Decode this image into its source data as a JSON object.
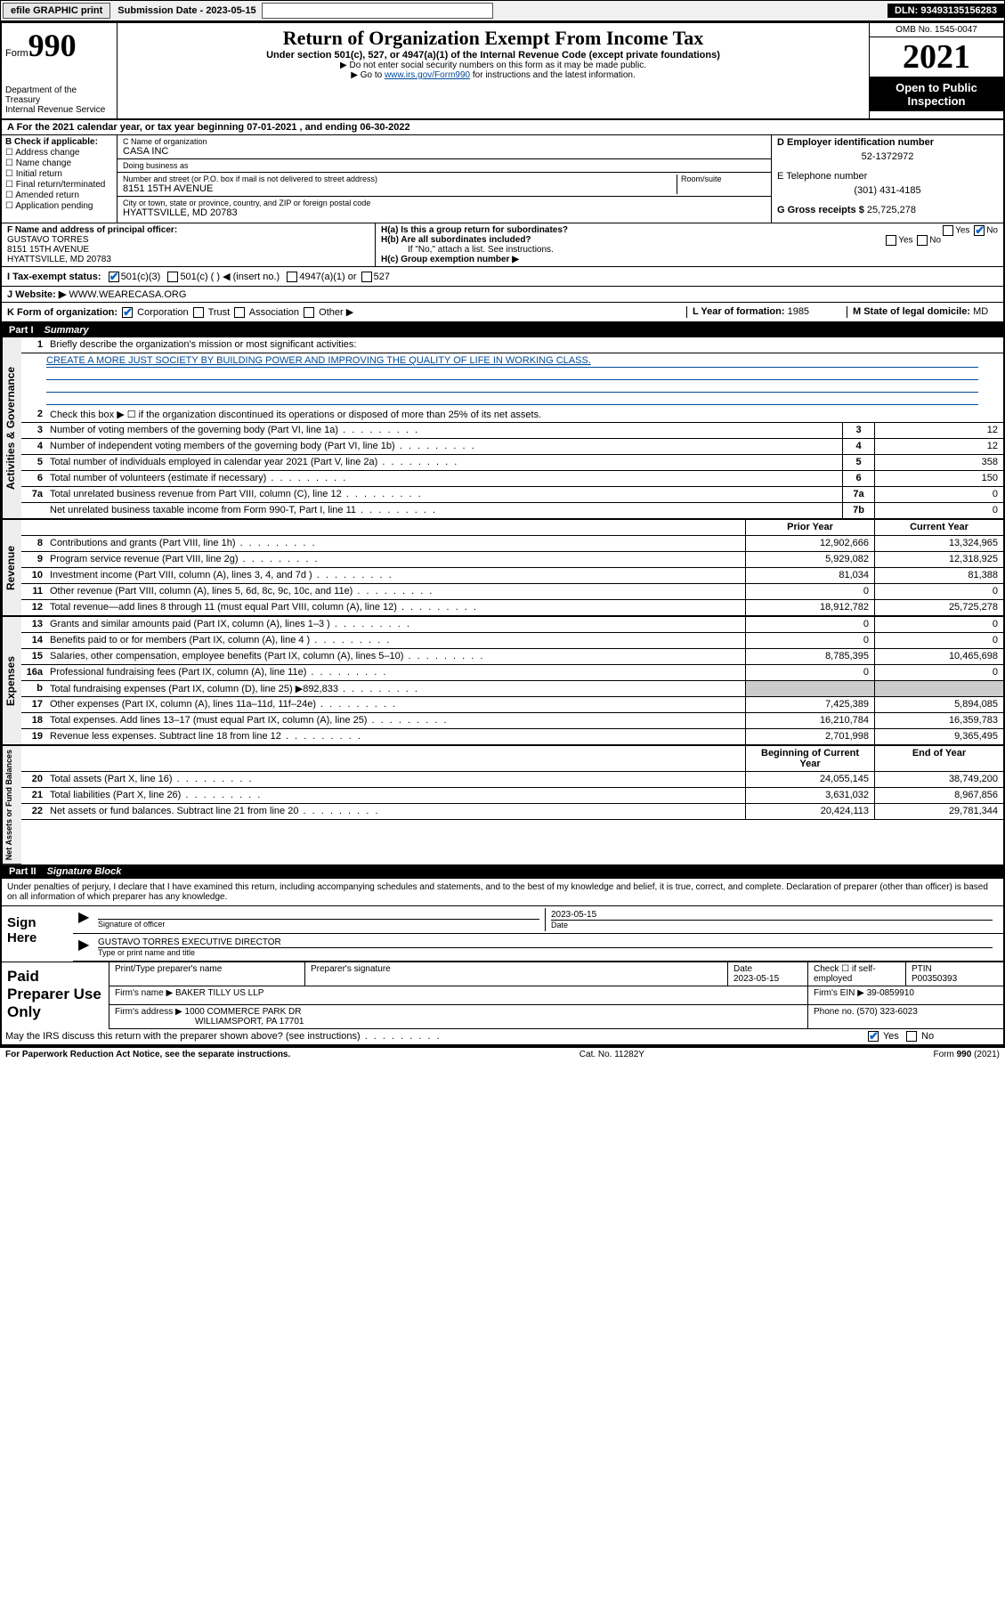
{
  "toolbar": {
    "efile": "efile GRAPHIC print",
    "sub_label": "Submission Date - 2023-05-15",
    "dln": "DLN: 93493135156283"
  },
  "header": {
    "form_word": "Form",
    "form_num": "990",
    "dept": "Department of the Treasury",
    "irs": "Internal Revenue Service",
    "title": "Return of Organization Exempt From Income Tax",
    "sub": "Under section 501(c), 527, or 4947(a)(1) of the Internal Revenue Code (except private foundations)",
    "note1": "▶ Do not enter social security numbers on this form as it may be made public.",
    "note2_pre": "▶ Go to ",
    "note2_link": "www.irs.gov/Form990",
    "note2_post": " for instructions and the latest information.",
    "omb": "OMB No. 1545-0047",
    "year": "2021",
    "opi": "Open to Public Inspection"
  },
  "rowA": "A For the 2021 calendar year, or tax year beginning 07-01-2021  , and ending 06-30-2022",
  "boxB": {
    "title": "B Check if applicable:",
    "opts": [
      "Address change",
      "Name change",
      "Initial return",
      "Final return/terminated",
      "Amended return",
      "Application pending"
    ]
  },
  "boxC": {
    "label_name": "C Name of organization",
    "name": "CASA INC",
    "dba_label": "Doing business as",
    "dba": "",
    "addr_label": "Number and street (or P.O. box if mail is not delivered to street address)",
    "room_label": "Room/suite",
    "addr": "8151 15TH AVENUE",
    "city_label": "City or town, state or province, country, and ZIP or foreign postal code",
    "city": "HYATTSVILLE, MD  20783"
  },
  "boxD": {
    "label": "D Employer identification number",
    "ein": "52-1372972",
    "tel_label": "E Telephone number",
    "tel": "(301) 431-4185",
    "gross_label": "G Gross receipts $",
    "gross": "25,725,278"
  },
  "boxF": {
    "label": "F  Name and address of principal officer:",
    "name": "GUSTAVO TORRES",
    "addr1": "8151 15TH AVENUE",
    "addr2": "HYATTSVILLE, MD  20783"
  },
  "boxH": {
    "ha": "H(a)  Is this a group return for subordinates?",
    "hb": "H(b)  Are all subordinates included?",
    "hb_note": "If \"No,\" attach a list. See instructions.",
    "hc": "H(c)  Group exemption number ▶",
    "yes": "Yes",
    "no": "No"
  },
  "rowI": {
    "label": "I   Tax-exempt status:",
    "o1": "501(c)(3)",
    "o2": "501(c) (  ) ◀ (insert no.)",
    "o3": "4947(a)(1) or",
    "o4": "527"
  },
  "rowJ": {
    "label": "J   Website: ▶",
    "val": "WWW.WEARECASA.ORG"
  },
  "rowK": {
    "label": "K Form of organization:",
    "o1": "Corporation",
    "o2": "Trust",
    "o3": "Association",
    "o4": "Other ▶",
    "l_label": "L Year of formation:",
    "l_val": "1985",
    "m_label": "M State of legal domicile:",
    "m_val": "MD"
  },
  "part1": {
    "num": "Part I",
    "title": "Summary"
  },
  "summary": {
    "q1": "Briefly describe the organization's mission or most significant activities:",
    "mission": "CREATE A MORE JUST SOCIETY BY BUILDING POWER AND IMPROVING THE QUALITY OF LIFE IN WORKING CLASS.",
    "q2": "Check this box ▶ ☐  if the organization discontinued its operations or disposed of more than 25% of its net assets.",
    "rows_gov": [
      {
        "n": "3",
        "t": "Number of voting members of the governing body (Part VI, line 1a)",
        "box": "3",
        "v": "12"
      },
      {
        "n": "4",
        "t": "Number of independent voting members of the governing body (Part VI, line 1b)",
        "box": "4",
        "v": "12"
      },
      {
        "n": "5",
        "t": "Total number of individuals employed in calendar year 2021 (Part V, line 2a)",
        "box": "5",
        "v": "358"
      },
      {
        "n": "6",
        "t": "Total number of volunteers (estimate if necessary)",
        "box": "6",
        "v": "150"
      },
      {
        "n": "7a",
        "t": "Total unrelated business revenue from Part VIII, column (C), line 12",
        "box": "7a",
        "v": "0"
      },
      {
        "n": "",
        "t": "Net unrelated business taxable income from Form 990-T, Part I, line 11",
        "box": "7b",
        "v": "0"
      }
    ],
    "col_prior": "Prior Year",
    "col_curr": "Current Year",
    "rows_rev": [
      {
        "n": "8",
        "t": "Contributions and grants (Part VIII, line 1h)",
        "p": "12,902,666",
        "c": "13,324,965"
      },
      {
        "n": "9",
        "t": "Program service revenue (Part VIII, line 2g)",
        "p": "5,929,082",
        "c": "12,318,925"
      },
      {
        "n": "10",
        "t": "Investment income (Part VIII, column (A), lines 3, 4, and 7d )",
        "p": "81,034",
        "c": "81,388"
      },
      {
        "n": "11",
        "t": "Other revenue (Part VIII, column (A), lines 5, 6d, 8c, 9c, 10c, and 11e)",
        "p": "0",
        "c": "0"
      },
      {
        "n": "12",
        "t": "Total revenue—add lines 8 through 11 (must equal Part VIII, column (A), line 12)",
        "p": "18,912,782",
        "c": "25,725,278"
      }
    ],
    "rows_exp": [
      {
        "n": "13",
        "t": "Grants and similar amounts paid (Part IX, column (A), lines 1–3 )",
        "p": "0",
        "c": "0"
      },
      {
        "n": "14",
        "t": "Benefits paid to or for members (Part IX, column (A), line 4 )",
        "p": "0",
        "c": "0"
      },
      {
        "n": "15",
        "t": "Salaries, other compensation, employee benefits (Part IX, column (A), lines 5–10)",
        "p": "8,785,395",
        "c": "10,465,698"
      },
      {
        "n": "16a",
        "t": "Professional fundraising fees (Part IX, column (A), line 11e)",
        "p": "0",
        "c": "0"
      },
      {
        "n": "b",
        "t": "Total fundraising expenses (Part IX, column (D), line 25) ▶892,833",
        "p": "",
        "c": "",
        "shade": true
      },
      {
        "n": "17",
        "t": "Other expenses (Part IX, column (A), lines 11a–11d, 11f–24e)",
        "p": "7,425,389",
        "c": "5,894,085"
      },
      {
        "n": "18",
        "t": "Total expenses. Add lines 13–17 (must equal Part IX, column (A), line 25)",
        "p": "16,210,784",
        "c": "16,359,783"
      },
      {
        "n": "19",
        "t": "Revenue less expenses. Subtract line 18 from line 12",
        "p": "2,701,998",
        "c": "9,365,495"
      }
    ],
    "col_beg": "Beginning of Current Year",
    "col_end": "End of Year",
    "rows_net": [
      {
        "n": "20",
        "t": "Total assets (Part X, line 16)",
        "p": "24,055,145",
        "c": "38,749,200"
      },
      {
        "n": "21",
        "t": "Total liabilities (Part X, line 26)",
        "p": "3,631,032",
        "c": "8,967,856"
      },
      {
        "n": "22",
        "t": "Net assets or fund balances. Subtract line 21 from line 20",
        "p": "20,424,113",
        "c": "29,781,344"
      }
    ],
    "tabs": {
      "gov": "Activities & Governance",
      "rev": "Revenue",
      "exp": "Expenses",
      "net": "Net Assets or Fund Balances"
    }
  },
  "part2": {
    "num": "Part II",
    "title": "Signature Block"
  },
  "sig": {
    "decl": "Under penalties of perjury, I declare that I have examined this return, including accompanying schedules and statements, and to the best of my knowledge and belief, it is true, correct, and complete. Declaration of preparer (other than officer) is based on all information of which preparer has any knowledge.",
    "sign_here": "Sign Here",
    "date": "2023-05-15",
    "sig_officer": "Signature of officer",
    "date_label": "Date",
    "name_title": "GUSTAVO TORRES  EXECUTIVE DIRECTOR",
    "name_title_label": "Type or print name and title"
  },
  "paid": {
    "title": "Paid Preparer Use Only",
    "h1": "Print/Type preparer's name",
    "h2": "Preparer's signature",
    "h3": "Date",
    "h4": "Check ☐ if self-employed",
    "h5": "PTIN",
    "date": "2023-05-15",
    "ptin": "P00350393",
    "firm_label": "Firm's name   ▶",
    "firm": "BAKER TILLY US LLP",
    "ein_label": "Firm's EIN ▶",
    "ein": "39-0859910",
    "addr_label": "Firm's address ▶",
    "addr1": "1000 COMMERCE PARK DR",
    "addr2": "WILLIAMSPORT, PA  17701",
    "phone_label": "Phone no.",
    "phone": "(570) 323-6023"
  },
  "footer": {
    "discuss": "May the IRS discuss this return with the preparer shown above? (see instructions)",
    "yes": "Yes",
    "no": "No",
    "pra": "For Paperwork Reduction Act Notice, see the separate instructions.",
    "cat": "Cat. No. 11282Y",
    "form": "Form 990 (2021)"
  }
}
